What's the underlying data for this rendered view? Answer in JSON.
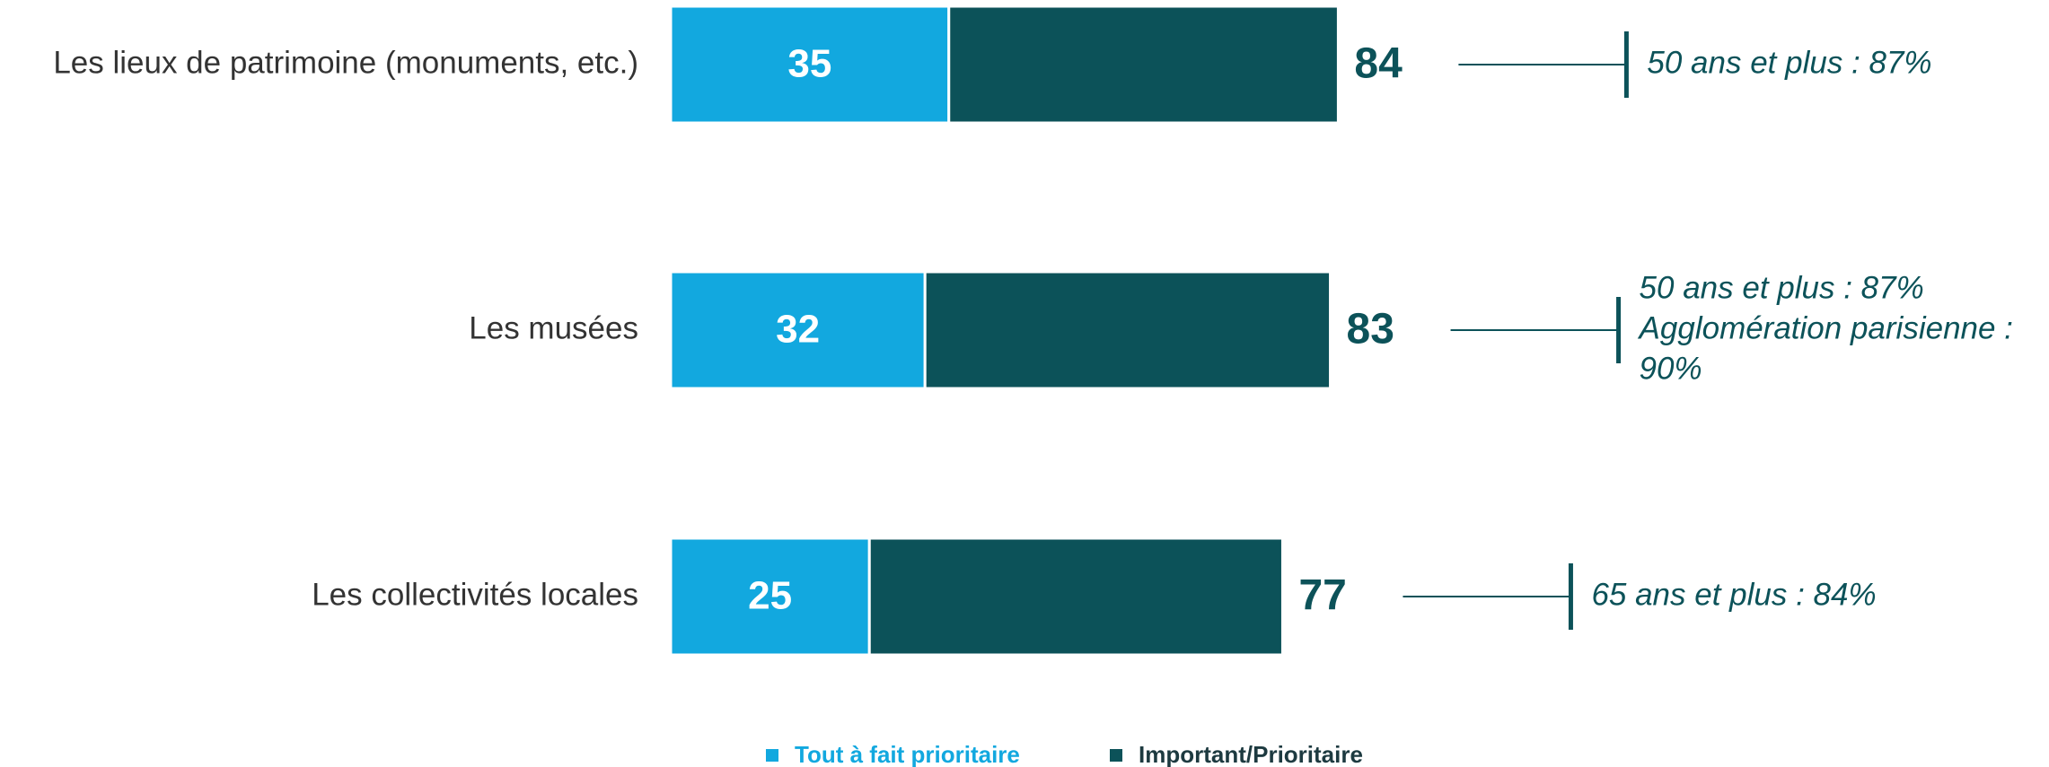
{
  "chart_data": {
    "type": "stacked-bar-horizontal",
    "categories": [
      "Les lieux de patrimoine (monuments, etc.)",
      "Les musées",
      "Les collectivités locales"
    ],
    "series": [
      {
        "name": "Tout à fait prioritaire",
        "color": "#12a8df",
        "values": [
          35,
          32,
          25
        ]
      },
      {
        "name": "Important/Prioritaire",
        "color": "#0c5259",
        "values": [
          49,
          51,
          52
        ]
      }
    ],
    "totals": [
      84,
      83,
      77
    ],
    "annotations": [
      [
        "50 ans et plus : 87%"
      ],
      [
        "50 ans et plus : 87%",
        "Agglomération parisienne :",
        "90%"
      ],
      [
        "65 ans et plus : 84%"
      ]
    ],
    "xlim": [
      0,
      84
    ],
    "legend": "bottom"
  }
}
